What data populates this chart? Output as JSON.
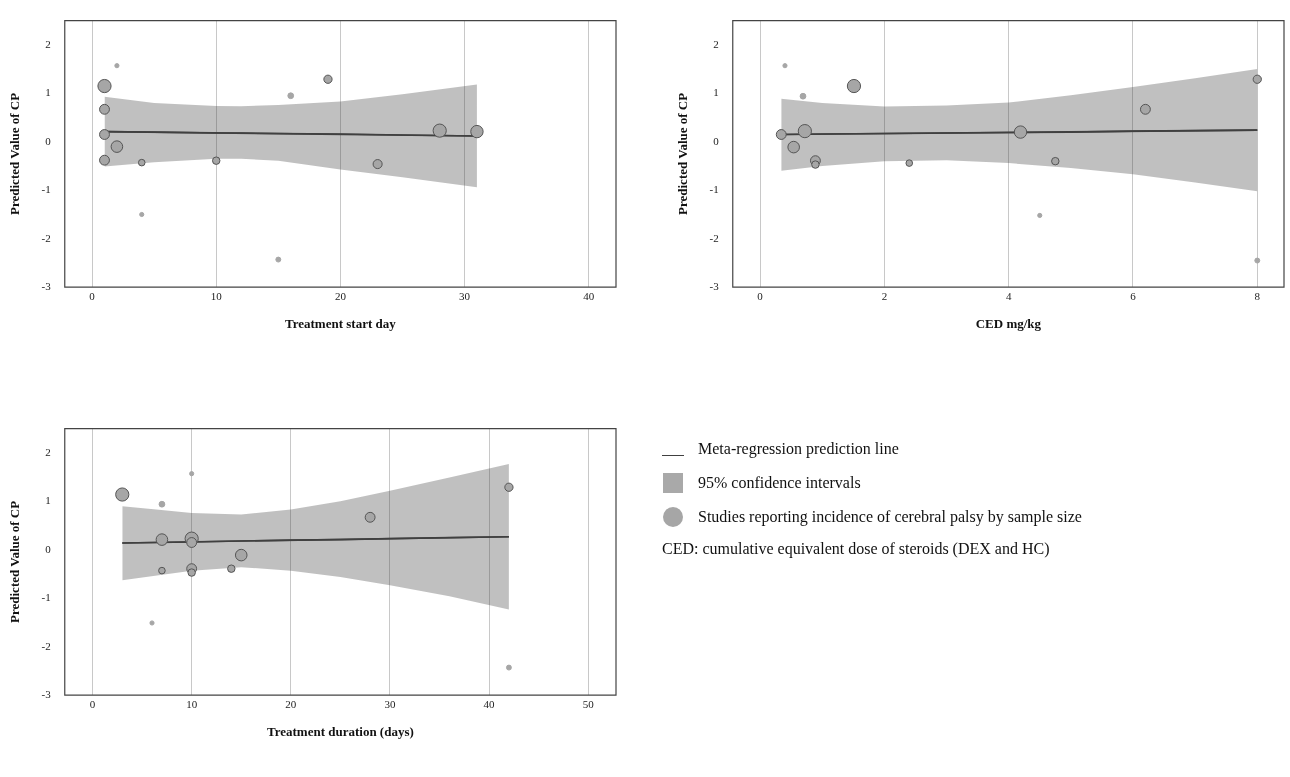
{
  "chart_data": [
    {
      "type": "bubble",
      "xlabel": "Treatment start day",
      "ylabel": "Predicted Value of CP",
      "xlim": [
        -2.2,
        42.2
      ],
      "xticks": [
        0,
        10,
        20,
        30,
        40
      ],
      "ylim": [
        -3,
        2.5
      ],
      "yticks": [
        -3,
        -2,
        -1,
        0,
        1,
        2
      ],
      "grid": "x",
      "legend": false,
      "series": [
        {
          "type": "line",
          "color": "#404040",
          "x": [
            1,
            5,
            10,
            12,
            15,
            20,
            25,
            31
          ],
          "values": [
            0.21,
            0.2,
            0.18,
            0.18,
            0.17,
            0.16,
            0.14,
            0.12
          ],
          "lower": [
            -0.51,
            -0.42,
            -0.35,
            -0.35,
            -0.39,
            -0.57,
            -0.73,
            -0.94
          ],
          "upper": [
            0.93,
            0.8,
            0.74,
            0.735,
            0.76,
            0.83,
            0.98,
            1.18
          ]
        },
        {
          "type": "line",
          "color": "#404040",
          "x": [
            1,
            31
          ],
          "values": [
            0.21,
            0.12
          ]
        },
        {
          "type": "bubble",
          "color": "#a6a6a6",
          "x": [
            2,
            1,
            1,
            1,
            2,
            1,
            4,
            4,
            10,
            16,
            19,
            15,
            23,
            28,
            31
          ],
          "values": [
            1.57,
            1.15,
            0.67,
            0.15,
            -0.1,
            -0.38,
            -0.43,
            -1.5,
            -0.39,
            0.95,
            1.29,
            -2.43,
            -0.46,
            0.23,
            0.21
          ],
          "sizes": [
            0.1,
            1,
            0.56,
            0.56,
            0.77,
            0.56,
            0.25,
            0.1,
            0.32,
            0.19,
            0.39,
            0.14,
            0.47,
            1,
            0.88
          ]
        }
      ]
    },
    {
      "type": "bubble",
      "xlabel": "CED mg/kg",
      "ylabel": "Predicted Value of CP",
      "xlim": [
        -0.44,
        8.43
      ],
      "xticks": [
        0,
        2,
        4,
        6,
        8
      ],
      "ylim": [
        -3,
        2.5
      ],
      "yticks": [
        -3,
        -2,
        -1,
        0,
        1,
        2
      ],
      "grid": "x",
      "legend": false,
      "series": [
        {
          "type": "line",
          "color": "#404040",
          "x": [
            0.34,
            1,
            2,
            3,
            4,
            5,
            6,
            7,
            8
          ],
          "values": [
            0.15,
            0.16,
            0.17,
            0.18,
            0.19,
            0.2,
            0.22,
            0.23,
            0.24
          ],
          "lower": [
            -0.6,
            -0.5,
            -0.4,
            -0.38,
            -0.44,
            -0.54,
            -0.67,
            -0.84,
            -1.02
          ],
          "upper": [
            0.89,
            0.8,
            0.73,
            0.75,
            0.81,
            0.96,
            1.13,
            1.31,
            1.5
          ]
        },
        {
          "type": "line",
          "color": "#404040",
          "x": [
            0.34,
            8
          ],
          "values": [
            0.15,
            0.24
          ]
        },
        {
          "type": "bubble",
          "color": "#a6a6a6",
          "x": [
            0.4,
            0.69,
            1.51,
            0.34,
            0.72,
            0.54,
            0.89,
            0.89,
            2.4,
            4.19,
            4.75,
            4.5,
            6.2,
            8,
            8
          ],
          "values": [
            1.57,
            0.94,
            1.15,
            0.15,
            0.22,
            -0.11,
            -0.39,
            -0.47,
            -0.44,
            0.2,
            -0.4,
            -1.52,
            0.67,
            1.29,
            -2.45
          ],
          "sizes": [
            0.1,
            0.19,
            1,
            0.56,
            1,
            0.77,
            0.56,
            0.32,
            0.25,
            0.88,
            0.32,
            0.1,
            0.56,
            0.39,
            0.14
          ]
        }
      ]
    },
    {
      "type": "bubble",
      "xlabel": "Treatment duration (days)",
      "ylabel": "Predicted Value of CP",
      "xlim": [
        -2.8,
        52.8
      ],
      "xticks": [
        0,
        10,
        20,
        30,
        40,
        50
      ],
      "ylim": [
        -3,
        2.5
      ],
      "yticks": [
        -3,
        -2,
        -1,
        0,
        1,
        2
      ],
      "grid": "x",
      "legend": "right",
      "annotations": [
        "CED: cumulative equivalent dose of steroids (DEX and HC)"
      ],
      "series": [
        {
          "name": "Meta-regression prediction line",
          "type": "line",
          "color": "#404040",
          "x": [
            3,
            42
          ],
          "values": [
            0.14,
            0.27
          ]
        },
        {
          "name": "95% confidence intervals",
          "type": "line",
          "color": "#404040",
          "x": [
            3,
            10,
            15,
            20,
            25,
            30,
            36,
            42
          ],
          "values": [
            0.14,
            0.16,
            0.18,
            0.2,
            0.21,
            0.23,
            0.25,
            0.27
          ],
          "lower": [
            -0.63,
            -0.43,
            -0.36,
            -0.43,
            -0.56,
            -0.73,
            -0.96,
            -1.23
          ],
          "upper": [
            0.9,
            0.76,
            0.73,
            0.83,
            1.0,
            1.22,
            1.49,
            1.77
          ]
        },
        {
          "name": "Studies reporting incidence of cerebral palsy by sample size",
          "type": "bubble",
          "color": "#a6a6a6",
          "x": [
            10,
            3,
            7,
            7,
            10,
            10,
            15,
            7,
            10,
            10,
            14,
            6,
            28,
            42,
            42
          ],
          "values": [
            1.57,
            1.14,
            0.94,
            0.21,
            0.23,
            0.15,
            -0.11,
            -0.43,
            -0.39,
            -0.47,
            -0.39,
            -1.51,
            0.67,
            1.29,
            -2.43
          ],
          "sizes": [
            0.1,
            1,
            0.19,
            0.77,
            1,
            0.56,
            0.77,
            0.25,
            0.56,
            0.32,
            0.32,
            0.1,
            0.56,
            0.39,
            0.14
          ]
        }
      ]
    }
  ]
}
